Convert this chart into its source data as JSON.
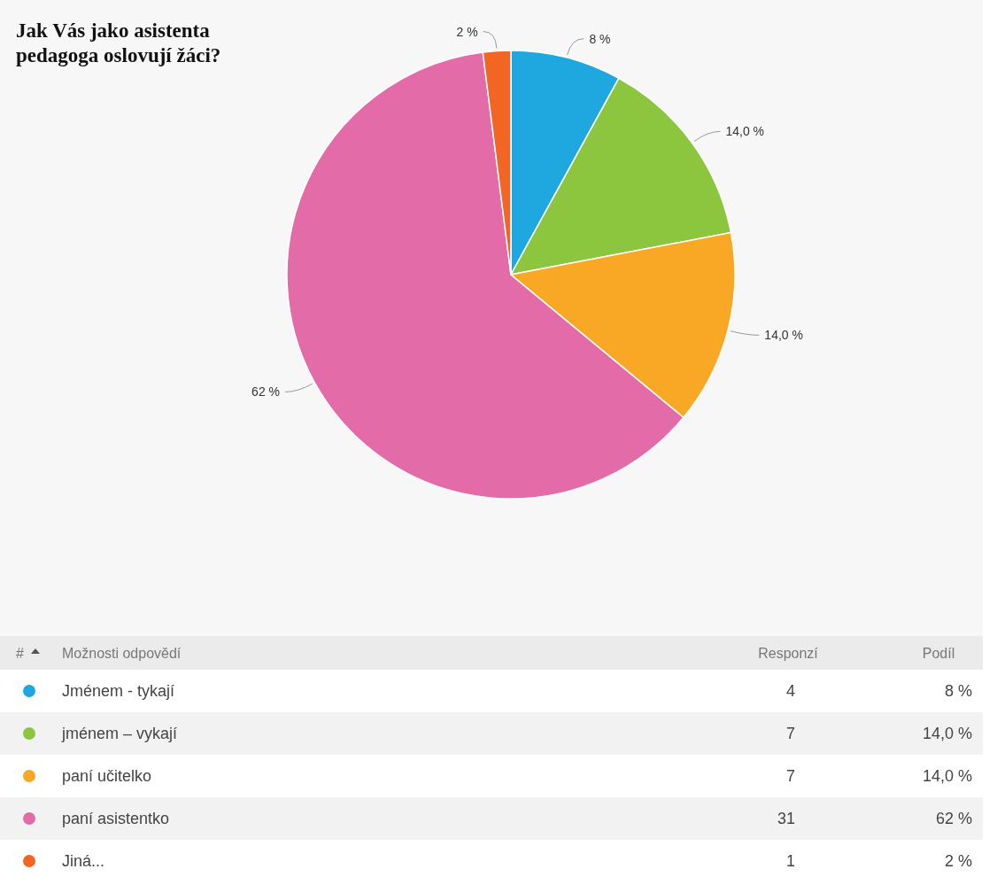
{
  "chart_data": {
    "type": "pie",
    "title": "Jak Vás jako asistenta pedagoga oslovují žáci?",
    "categories": [
      "Jménem - tykají",
      "jménem – vykají",
      "paní učitelko",
      "paní asistentko",
      "Jiná..."
    ],
    "values": [
      8,
      14,
      14,
      62,
      2
    ],
    "value_labels": [
      "8 %",
      "14,0 %",
      "14,0 %",
      "62 %",
      "2 %"
    ],
    "colors": [
      "#1fa8e0",
      "#8cc63f",
      "#f9a825",
      "#e36ca8",
      "#f26522"
    ],
    "annotations": [
      "#",
      "Možnosti odpovědí",
      "Responzí",
      "Podíl",
      "4",
      "7",
      "7",
      "31",
      "1"
    ],
    "legend": "bottom"
  }
}
